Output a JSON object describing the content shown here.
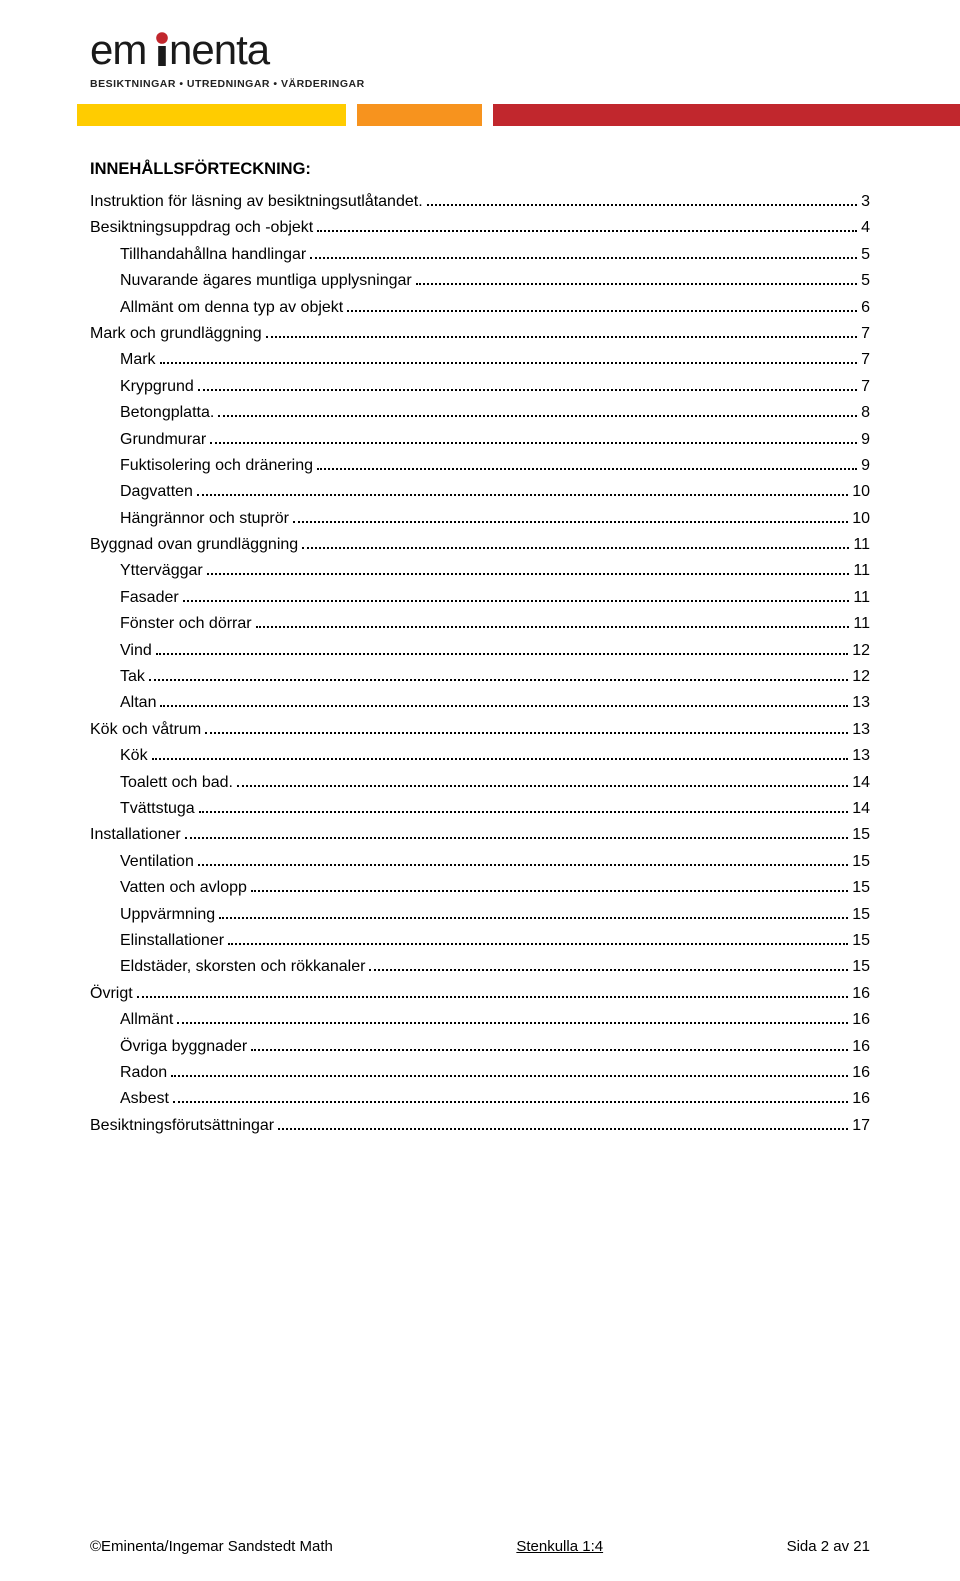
{
  "logo": {
    "text": "eminenta",
    "tagline": "BESIKTNINGAR • UTREDNINGAR • VÄRDERINGAR",
    "dot_color": "#c1272d",
    "text_color": "#1a1a1a"
  },
  "stripe": {
    "segments": [
      {
        "width": "8%",
        "color": "#ffffff"
      },
      {
        "width": "28%",
        "color": "#ffcc00"
      },
      {
        "width": "1.2%",
        "color": "#ffffff"
      },
      {
        "width": "13%",
        "color": "#f7931e"
      },
      {
        "width": "1.2%",
        "color": "#ffffff"
      },
      {
        "width": "48.6%",
        "color": "#c1272d"
      }
    ]
  },
  "toc": {
    "title": "INNEHÅLLSFÖRTECKNING:",
    "entries": [
      {
        "label": "Instruktion för läsning av besiktningsutlåtandet.",
        "page": "3",
        "indent": 0
      },
      {
        "label": "Besiktningsuppdrag och -objekt",
        "page": "4",
        "indent": 0
      },
      {
        "label": "Tillhandahållna handlingar",
        "page": "5",
        "indent": 1
      },
      {
        "label": "Nuvarande ägares muntliga upplysningar",
        "page": "5",
        "indent": 1
      },
      {
        "label": "Allmänt om denna typ av objekt",
        "page": "6",
        "indent": 1
      },
      {
        "label": "Mark och grundläggning",
        "page": "7",
        "indent": 0
      },
      {
        "label": "Mark",
        "page": "7",
        "indent": 1
      },
      {
        "label": "Krypgrund",
        "page": "7",
        "indent": 1
      },
      {
        "label": "Betongplatta.",
        "page": "8",
        "indent": 1
      },
      {
        "label": "Grundmurar",
        "page": "9",
        "indent": 1
      },
      {
        "label": "Fuktisolering och dränering",
        "page": "9",
        "indent": 1
      },
      {
        "label": "Dagvatten",
        "page": "10",
        "indent": 1
      },
      {
        "label": "Hängrännor och stuprör",
        "page": "10",
        "indent": 1
      },
      {
        "label": "Byggnad ovan grundläggning",
        "page": "11",
        "indent": 0
      },
      {
        "label": "Ytterväggar",
        "page": "11",
        "indent": 1
      },
      {
        "label": "Fasader",
        "page": "11",
        "indent": 1
      },
      {
        "label": "Fönster och dörrar",
        "page": "11",
        "indent": 1
      },
      {
        "label": "Vind",
        "page": "12",
        "indent": 1
      },
      {
        "label": "Tak",
        "page": "12",
        "indent": 1
      },
      {
        "label": "Altan",
        "page": "13",
        "indent": 1
      },
      {
        "label": "Kök och våtrum",
        "page": "13",
        "indent": 0
      },
      {
        "label": "Kök",
        "page": "13",
        "indent": 1
      },
      {
        "label": "Toalett och bad.",
        "page": "14",
        "indent": 1
      },
      {
        "label": "Tvättstuga",
        "page": "14",
        "indent": 1
      },
      {
        "label": "Installationer",
        "page": "15",
        "indent": 0
      },
      {
        "label": "Ventilation",
        "page": "15",
        "indent": 1
      },
      {
        "label": "Vatten och avlopp",
        "page": "15",
        "indent": 1
      },
      {
        "label": "Uppvärmning",
        "page": "15",
        "indent": 1
      },
      {
        "label": "Elinstallationer",
        "page": "15",
        "indent": 1
      },
      {
        "label": "Eldstäder, skorsten och rökkanaler",
        "page": "15",
        "indent": 1
      },
      {
        "label": "Övrigt",
        "page": "16",
        "indent": 0
      },
      {
        "label": "Allmänt",
        "page": "16",
        "indent": 1
      },
      {
        "label": "Övriga byggnader",
        "page": "16",
        "indent": 1
      },
      {
        "label": "Radon",
        "page": "16",
        "indent": 1
      },
      {
        "label": "Asbest",
        "page": "16",
        "indent": 1
      },
      {
        "label": "Besiktningsförutsättningar",
        "page": "17",
        "indent": 0
      }
    ]
  },
  "footer": {
    "left": "©Eminenta/Ingemar Sandstedt Math",
    "center": "Stenkulla 1:4",
    "right": "Sida 2 av 21"
  }
}
